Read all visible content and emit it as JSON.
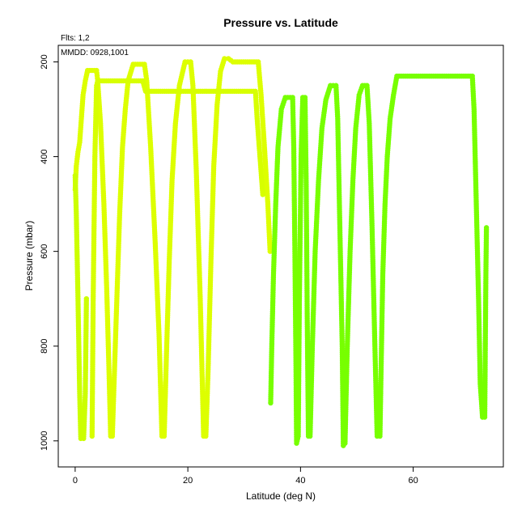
{
  "chart_data": {
    "type": "scatter",
    "title": "Pressure vs. Latitude",
    "subtitle": "Flts: 1,2",
    "annotation": "MMDD: 0928,1001",
    "xlabel": "Latitude (deg N)",
    "ylabel": "Pressure (mbar)",
    "xlim": [
      -3,
      76
    ],
    "ylim": [
      1055,
      165
    ],
    "y_reversed": true,
    "grid": false,
    "xticks": [
      0,
      20,
      40,
      60
    ],
    "yticks": [
      200,
      400,
      600,
      800,
      1000
    ],
    "series": [
      {
        "color": "#DDFF00",
        "points": [
          [
            0,
            470
          ],
          [
            0.2,
            420
          ],
          [
            0.5,
            390
          ],
          [
            0.8,
            370
          ],
          [
            1.1,
            320
          ],
          [
            1.4,
            270
          ],
          [
            1.8,
            240
          ],
          [
            2.2,
            218
          ],
          [
            3.8,
            218
          ],
          [
            4.0,
            240
          ],
          [
            4.5,
            330
          ],
          [
            5.1,
            500
          ],
          [
            5.6,
            680
          ],
          [
            6.0,
            850
          ],
          [
            6.3,
            990
          ],
          [
            6.6,
            990
          ],
          [
            6.9,
            880
          ],
          [
            7.4,
            700
          ],
          [
            7.9,
            520
          ],
          [
            8.4,
            380
          ],
          [
            8.9,
            300
          ],
          [
            9.4,
            240
          ],
          [
            10.3,
            205
          ],
          [
            12.3,
            205
          ],
          [
            12.7,
            240
          ],
          [
            13.4,
            380
          ],
          [
            14.2,
            580
          ],
          [
            14.9,
            780
          ],
          [
            15.4,
            990
          ],
          [
            15.8,
            990
          ],
          [
            16.2,
            820
          ],
          [
            16.7,
            620
          ],
          [
            17.2,
            450
          ],
          [
            17.8,
            330
          ],
          [
            18.5,
            250
          ],
          [
            19.5,
            200
          ],
          [
            20.5,
            200
          ],
          [
            20.9,
            250
          ],
          [
            21.5,
            430
          ],
          [
            22.2,
            700
          ],
          [
            22.8,
            990
          ],
          [
            23.2,
            990
          ],
          [
            23.6,
            850
          ],
          [
            24.1,
            620
          ],
          [
            24.6,
            420
          ],
          [
            25.2,
            290
          ],
          [
            25.8,
            220
          ],
          [
            26.5,
            193
          ],
          [
            27.2,
            193
          ],
          [
            28,
            200
          ],
          [
            32.5,
            200
          ],
          [
            33.0,
            270
          ],
          [
            33.6,
            380
          ],
          [
            34.2,
            500
          ],
          [
            34.6,
            600
          ]
        ]
      },
      {
        "color": "#D7FF00",
        "points": [
          [
            3.0,
            990
          ],
          [
            3.2,
            700
          ],
          [
            3.5,
            400
          ],
          [
            3.8,
            250
          ],
          [
            4,
            240
          ],
          [
            12,
            240
          ],
          [
            12.5,
            262
          ],
          [
            32,
            262
          ],
          [
            32.3,
            320
          ],
          [
            32.8,
            400
          ],
          [
            33.3,
            480
          ]
        ]
      },
      {
        "color": "#CCFF00",
        "points": [
          [
            0,
            440
          ],
          [
            0.2,
            520
          ],
          [
            0.5,
            700
          ],
          [
            0.8,
            900
          ],
          [
            1.0,
            995
          ],
          [
            1.5,
            995
          ],
          [
            1.8,
            900
          ],
          [
            2.0,
            700
          ]
        ]
      },
      {
        "color": "#77FF00",
        "points": [
          [
            34.7,
            920
          ],
          [
            34.9,
            800
          ],
          [
            35.2,
            650
          ],
          [
            35.6,
            500
          ],
          [
            36.0,
            380
          ],
          [
            36.6,
            300
          ],
          [
            37.3,
            275
          ],
          [
            38.6,
            275
          ],
          [
            38.8,
            380
          ],
          [
            39.0,
            600
          ],
          [
            39.2,
            850
          ],
          [
            39.3,
            1005
          ],
          [
            39.6,
            990
          ],
          [
            39.8,
            700
          ],
          [
            40.1,
            400
          ],
          [
            40.4,
            275
          ],
          [
            40.8,
            275
          ],
          [
            41.0,
            450
          ],
          [
            41.2,
            750
          ],
          [
            41.4,
            990
          ],
          [
            41.7,
            990
          ],
          [
            42.1,
            800
          ],
          [
            42.6,
            600
          ],
          [
            43.2,
            450
          ],
          [
            43.8,
            340
          ],
          [
            44.5,
            280
          ],
          [
            45.3,
            250
          ],
          [
            46.3,
            250
          ],
          [
            46.6,
            320
          ],
          [
            47.0,
            560
          ],
          [
            47.4,
            800
          ],
          [
            47.6,
            1010
          ],
          [
            47.9,
            1005
          ],
          [
            48.3,
            800
          ],
          [
            48.8,
            600
          ],
          [
            49.3,
            450
          ],
          [
            49.8,
            340
          ],
          [
            50.4,
            270
          ],
          [
            51.0,
            250
          ],
          [
            51.8,
            250
          ],
          [
            52.2,
            330
          ],
          [
            52.7,
            550
          ],
          [
            53.2,
            800
          ],
          [
            53.6,
            990
          ],
          [
            54.1,
            990
          ],
          [
            54.3,
            850
          ],
          [
            54.6,
            650
          ],
          [
            55.0,
            500
          ],
          [
            55.4,
            400
          ],
          [
            55.9,
            320
          ],
          [
            56.5,
            270
          ],
          [
            57.1,
            230
          ],
          [
            70.5,
            230
          ],
          [
            70.8,
            300
          ],
          [
            71.2,
            500
          ],
          [
            71.6,
            700
          ],
          [
            71.9,
            880
          ],
          [
            72.3,
            950
          ],
          [
            72.7,
            950
          ],
          [
            72.8,
            800
          ],
          [
            72.9,
            650
          ],
          [
            73.0,
            550
          ]
        ]
      }
    ]
  }
}
